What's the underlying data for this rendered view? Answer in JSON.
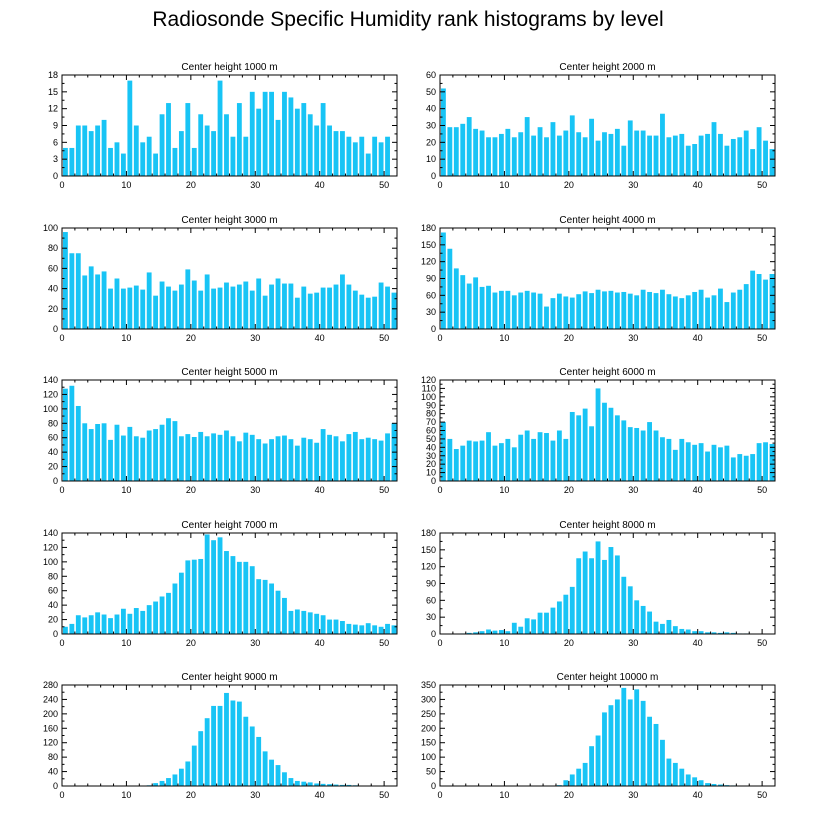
{
  "figure": {
    "title": "Radiosonde Specific Humidity rank histograms by level",
    "bar_color": "#18C4F5"
  },
  "chart_data": [
    {
      "type": "bar",
      "title": "Center height 1000 m",
      "x": [
        0,
        1,
        2,
        3,
        4,
        5,
        6,
        7,
        8,
        9,
        10,
        11,
        12,
        13,
        14,
        15,
        16,
        17,
        18,
        19,
        20,
        21,
        22,
        23,
        24,
        25,
        26,
        27,
        28,
        29,
        30,
        31,
        32,
        33,
        34,
        35,
        36,
        37,
        38,
        39,
        40,
        41,
        42,
        43,
        44,
        45,
        46,
        47,
        48,
        49,
        50,
        51
      ],
      "values": [
        5,
        5,
        9,
        9,
        8,
        9,
        10,
        5,
        6,
        4,
        17,
        9,
        6,
        7,
        4,
        11,
        13,
        5,
        8,
        13,
        5,
        11,
        9,
        8,
        17,
        11,
        7,
        13,
        7,
        15,
        12,
        15,
        15,
        10,
        15,
        14,
        12,
        13,
        11,
        9,
        13,
        9,
        8,
        8,
        7,
        6,
        7,
        4,
        7,
        6,
        7,
        0
      ],
      "ylim": [
        0,
        18
      ],
      "yticks": [
        0,
        3,
        6,
        9,
        12,
        15,
        18
      ],
      "xticks": [
        0,
        10,
        20,
        30,
        40,
        50
      ],
      "xlim": [
        0,
        52
      ]
    },
    {
      "type": "bar",
      "title": "Center height 2000 m",
      "x": [
        0,
        1,
        2,
        3,
        4,
        5,
        6,
        7,
        8,
        9,
        10,
        11,
        12,
        13,
        14,
        15,
        16,
        17,
        18,
        19,
        20,
        21,
        22,
        23,
        24,
        25,
        26,
        27,
        28,
        29,
        30,
        31,
        32,
        33,
        34,
        35,
        36,
        37,
        38,
        39,
        40,
        41,
        42,
        43,
        44,
        45,
        46,
        47,
        48,
        49,
        50,
        51
      ],
      "values": [
        52,
        29,
        29,
        31,
        35,
        28,
        27,
        23,
        23,
        25,
        28,
        23,
        26,
        35,
        24,
        29,
        23,
        32,
        24,
        27,
        36,
        26,
        23,
        34,
        21,
        26,
        25,
        28,
        18,
        33,
        27,
        27,
        24,
        24,
        37,
        23,
        24,
        25,
        18,
        19,
        24,
        25,
        32,
        25,
        18,
        22,
        23,
        27,
        16,
        29,
        21,
        16
      ],
      "ylim": [
        0,
        60
      ],
      "yticks": [
        0,
        10,
        20,
        30,
        40,
        50,
        60
      ],
      "xticks": [
        0,
        10,
        20,
        30,
        40,
        50
      ],
      "xlim": [
        0,
        52
      ]
    },
    {
      "type": "bar",
      "title": "Center height 3000 m",
      "x": [
        0,
        1,
        2,
        3,
        4,
        5,
        6,
        7,
        8,
        9,
        10,
        11,
        12,
        13,
        14,
        15,
        16,
        17,
        18,
        19,
        20,
        21,
        22,
        23,
        24,
        25,
        26,
        27,
        28,
        29,
        30,
        31,
        32,
        33,
        34,
        35,
        36,
        37,
        38,
        39,
        40,
        41,
        42,
        43,
        44,
        45,
        46,
        47,
        48,
        49,
        50,
        51
      ],
      "values": [
        96,
        75,
        75,
        53,
        62,
        54,
        57,
        40,
        50,
        40,
        41,
        43,
        39,
        56,
        33,
        47,
        42,
        38,
        44,
        59,
        48,
        38,
        54,
        40,
        41,
        46,
        42,
        44,
        47,
        38,
        50,
        33,
        44,
        50,
        45,
        45,
        31,
        42,
        35,
        36,
        41,
        41,
        44,
        54,
        44,
        38,
        34,
        31,
        32,
        46,
        42,
        36
      ],
      "ylim": [
        0,
        100
      ],
      "yticks": [
        0,
        20,
        40,
        60,
        80,
        100
      ],
      "xticks": [
        0,
        10,
        20,
        30,
        40,
        50
      ],
      "xlim": [
        0,
        52
      ]
    },
    {
      "type": "bar",
      "title": "Center height 4000 m",
      "x": [
        0,
        1,
        2,
        3,
        4,
        5,
        6,
        7,
        8,
        9,
        10,
        11,
        12,
        13,
        14,
        15,
        16,
        17,
        18,
        19,
        20,
        21,
        22,
        23,
        24,
        25,
        26,
        27,
        28,
        29,
        30,
        31,
        32,
        33,
        34,
        35,
        36,
        37,
        38,
        39,
        40,
        41,
        42,
        43,
        44,
        45,
        46,
        47,
        48,
        49,
        50,
        51
      ],
      "values": [
        172,
        143,
        108,
        96,
        81,
        92,
        75,
        77,
        65,
        68,
        68,
        60,
        65,
        68,
        65,
        63,
        40,
        55,
        63,
        58,
        56,
        62,
        67,
        64,
        70,
        67,
        68,
        65,
        66,
        63,
        60,
        70,
        66,
        64,
        70,
        62,
        58,
        55,
        60,
        66,
        70,
        56,
        60,
        72,
        48,
        65,
        70,
        80,
        104,
        98,
        88,
        98
      ],
      "ylim": [
        0,
        180
      ],
      "yticks": [
        0,
        30,
        60,
        90,
        120,
        150,
        180
      ],
      "xticks": [
        0,
        10,
        20,
        30,
        40,
        50
      ],
      "xlim": [
        0,
        52
      ]
    },
    {
      "type": "bar",
      "title": "Center height 5000 m",
      "x": [
        0,
        1,
        2,
        3,
        4,
        5,
        6,
        7,
        8,
        9,
        10,
        11,
        12,
        13,
        14,
        15,
        16,
        17,
        18,
        19,
        20,
        21,
        22,
        23,
        24,
        25,
        26,
        27,
        28,
        29,
        30,
        31,
        32,
        33,
        34,
        35,
        36,
        37,
        38,
        39,
        40,
        41,
        42,
        43,
        44,
        45,
        46,
        47,
        48,
        49,
        50,
        51
      ],
      "values": [
        128,
        132,
        104,
        80,
        72,
        79,
        80,
        57,
        78,
        63,
        75,
        62,
        60,
        70,
        72,
        78,
        87,
        83,
        62,
        65,
        61,
        68,
        62,
        66,
        64,
        70,
        62,
        55,
        67,
        64,
        58,
        52,
        58,
        62,
        63,
        58,
        49,
        60,
        58,
        53,
        72,
        64,
        62,
        55,
        65,
        68,
        58,
        60,
        58,
        56,
        66,
        80
      ],
      "ylim": [
        0,
        140
      ],
      "yticks": [
        0,
        20,
        40,
        60,
        80,
        100,
        120,
        140
      ],
      "xticks": [
        0,
        10,
        20,
        30,
        40,
        50
      ],
      "xlim": [
        0,
        52
      ]
    },
    {
      "type": "bar",
      "title": "Center height 6000 m",
      "x": [
        0,
        1,
        2,
        3,
        4,
        5,
        6,
        7,
        8,
        9,
        10,
        11,
        12,
        13,
        14,
        15,
        16,
        17,
        18,
        19,
        20,
        21,
        22,
        23,
        24,
        25,
        26,
        27,
        28,
        29,
        30,
        31,
        32,
        33,
        34,
        35,
        36,
        37,
        38,
        39,
        40,
        41,
        42,
        43,
        44,
        45,
        46,
        47,
        48,
        49,
        50,
        51
      ],
      "values": [
        70,
        50,
        38,
        42,
        48,
        47,
        48,
        58,
        42,
        45,
        50,
        40,
        55,
        60,
        50,
        58,
        57,
        48,
        60,
        50,
        82,
        78,
        86,
        65,
        110,
        93,
        87,
        78,
        72,
        64,
        63,
        60,
        70,
        60,
        52,
        50,
        37,
        50,
        46,
        43,
        45,
        35,
        43,
        40,
        42,
        28,
        32,
        30,
        32,
        45,
        46,
        44
      ],
      "ylim": [
        0,
        120
      ],
      "yticks": [
        0,
        10,
        20,
        30,
        40,
        50,
        60,
        70,
        80,
        90,
        100,
        110,
        120
      ],
      "xticks": [
        0,
        10,
        20,
        30,
        40,
        50
      ],
      "xlim": [
        0,
        52
      ]
    },
    {
      "type": "bar",
      "title": "Center height 7000 m",
      "x": [
        0,
        1,
        2,
        3,
        4,
        5,
        6,
        7,
        8,
        9,
        10,
        11,
        12,
        13,
        14,
        15,
        16,
        17,
        18,
        19,
        20,
        21,
        22,
        23,
        24,
        25,
        26,
        27,
        28,
        29,
        30,
        31,
        32,
        33,
        34,
        35,
        36,
        37,
        38,
        39,
        40,
        41,
        42,
        43,
        44,
        45,
        46,
        47,
        48,
        49,
        50,
        51
      ],
      "values": [
        10,
        14,
        26,
        23,
        26,
        30,
        27,
        22,
        27,
        35,
        28,
        36,
        32,
        40,
        45,
        52,
        57,
        70,
        85,
        102,
        103,
        104,
        138,
        130,
        134,
        115,
        108,
        100,
        100,
        94,
        76,
        75,
        70,
        60,
        50,
        32,
        34,
        32,
        30,
        28,
        26,
        20,
        20,
        18,
        14,
        13,
        12,
        15,
        12,
        10,
        14,
        12
      ],
      "ylim": [
        0,
        140
      ],
      "yticks": [
        0,
        20,
        40,
        60,
        80,
        100,
        120,
        140
      ],
      "xticks": [
        0,
        10,
        20,
        30,
        40,
        50
      ],
      "xlim": [
        0,
        52
      ]
    },
    {
      "type": "bar",
      "title": "Center height 8000 m",
      "x": [
        0,
        1,
        2,
        3,
        4,
        5,
        6,
        7,
        8,
        9,
        10,
        11,
        12,
        13,
        14,
        15,
        16,
        17,
        18,
        19,
        20,
        21,
        22,
        23,
        24,
        25,
        26,
        27,
        28,
        29,
        30,
        31,
        32,
        33,
        34,
        35,
        36,
        37,
        38,
        39,
        40,
        41,
        42,
        43,
        44,
        45,
        46,
        47,
        48,
        49,
        50,
        51
      ],
      "values": [
        0,
        0,
        0,
        1,
        2,
        3,
        5,
        8,
        6,
        7,
        5,
        20,
        13,
        28,
        26,
        38,
        38,
        47,
        58,
        70,
        84,
        135,
        147,
        135,
        165,
        132,
        155,
        140,
        102,
        85,
        60,
        50,
        40,
        22,
        18,
        25,
        14,
        9,
        8,
        5,
        5,
        3,
        3,
        2,
        3,
        2,
        1,
        1,
        0,
        0,
        0,
        0
      ],
      "ylim": [
        0,
        180
      ],
      "yticks": [
        0,
        30,
        60,
        90,
        120,
        150,
        180
      ],
      "xticks": [
        0,
        10,
        20,
        30,
        40,
        50
      ],
      "xlim": [
        0,
        52
      ]
    },
    {
      "type": "bar",
      "title": "Center height 9000 m",
      "x": [
        0,
        1,
        2,
        3,
        4,
        5,
        6,
        7,
        8,
        9,
        10,
        11,
        12,
        13,
        14,
        15,
        16,
        17,
        18,
        19,
        20,
        21,
        22,
        23,
        24,
        25,
        26,
        27,
        28,
        29,
        30,
        31,
        32,
        33,
        34,
        35,
        36,
        37,
        38,
        39,
        40,
        41,
        42,
        43,
        44,
        45,
        46,
        47,
        48,
        49,
        50,
        51
      ],
      "values": [
        0,
        0,
        0,
        0,
        0,
        0,
        0,
        0,
        0,
        0,
        0,
        0,
        0,
        2,
        8,
        14,
        22,
        32,
        48,
        68,
        112,
        152,
        188,
        222,
        222,
        258,
        237,
        234,
        192,
        165,
        136,
        96,
        73,
        58,
        38,
        22,
        14,
        12,
        10,
        7,
        6,
        5,
        4,
        3,
        3,
        2,
        1,
        1,
        0,
        0,
        0,
        0
      ],
      "ylim": [
        0,
        280
      ],
      "yticks": [
        0,
        40,
        80,
        120,
        160,
        200,
        240,
        280
      ],
      "xticks": [
        0,
        10,
        20,
        30,
        40,
        50
      ],
      "xlim": [
        0,
        52
      ]
    },
    {
      "type": "bar",
      "title": "Center height 10000 m",
      "x": [
        0,
        1,
        2,
        3,
        4,
        5,
        6,
        7,
        8,
        9,
        10,
        11,
        12,
        13,
        14,
        15,
        16,
        17,
        18,
        19,
        20,
        21,
        22,
        23,
        24,
        25,
        26,
        27,
        28,
        29,
        30,
        31,
        32,
        33,
        34,
        35,
        36,
        37,
        38,
        39,
        40,
        41,
        42,
        43,
        44,
        45,
        46,
        47,
        48,
        49,
        50,
        51
      ],
      "values": [
        0,
        0,
        0,
        0,
        0,
        0,
        0,
        0,
        0,
        0,
        0,
        0,
        0,
        0,
        0,
        0,
        0,
        0,
        3,
        20,
        40,
        60,
        80,
        138,
        175,
        255,
        280,
        300,
        340,
        300,
        335,
        295,
        240,
        215,
        160,
        95,
        80,
        60,
        40,
        30,
        20,
        10,
        7,
        5,
        3,
        2,
        1,
        1,
        0,
        0,
        0,
        0
      ],
      "ylim": [
        0,
        350
      ],
      "yticks": [
        0,
        50,
        100,
        150,
        200,
        250,
        300,
        350
      ],
      "xticks": [
        0,
        10,
        20,
        30,
        40,
        50
      ],
      "xlim": [
        0,
        52
      ]
    }
  ]
}
